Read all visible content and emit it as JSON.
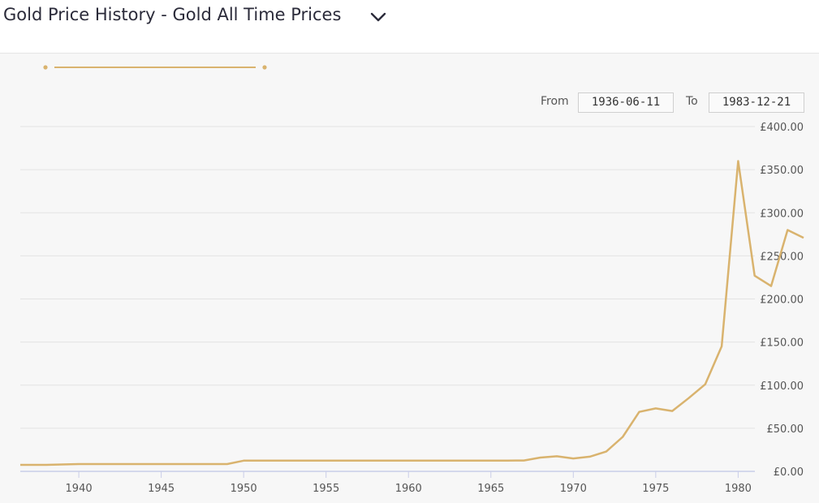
{
  "header": {
    "title": "Gold Price History - Gold All Time Prices"
  },
  "range_selector": {
    "from_label": "From",
    "from_value": "1936-06-11",
    "to_label": "To",
    "to_value": "1983-12-21"
  },
  "colors": {
    "line": "#d9b36e",
    "grid": "#e3e3e3",
    "axis": "#c9cde8",
    "title": "#2b2b3a"
  },
  "icons": {
    "dropdown": "chevron-down-icon"
  },
  "chart_data": {
    "type": "line",
    "title": "",
    "xlabel": "",
    "ylabel": "",
    "xlim": [
      1936.45,
      1983.97
    ],
    "ylim": [
      0,
      400
    ],
    "x_ticks": [
      1940,
      1945,
      1950,
      1955,
      1960,
      1965,
      1970,
      1975,
      1980
    ],
    "y_ticks": [
      {
        "value": 0,
        "label": "£0.00"
      },
      {
        "value": 50,
        "label": "£50.00"
      },
      {
        "value": 100,
        "label": "£100.00"
      },
      {
        "value": 150,
        "label": "£150.00"
      },
      {
        "value": 200,
        "label": "£200.00"
      },
      {
        "value": 250,
        "label": "£250.00"
      },
      {
        "value": 300,
        "label": "£300.00"
      },
      {
        "value": 350,
        "label": "£350.00"
      },
      {
        "value": 400,
        "label": "£400.00"
      }
    ],
    "grid": true,
    "y_axis_side": "right",
    "series": [
      {
        "x": [
          1936.45,
          1938,
          1939,
          1940,
          1941,
          1942,
          1943,
          1944,
          1945,
          1946,
          1947,
          1948,
          1949,
          1950,
          1951,
          1952,
          1953,
          1954,
          1955,
          1956,
          1957,
          1958,
          1959,
          1960,
          1961,
          1962,
          1963,
          1964,
          1965,
          1966,
          1967,
          1968,
          1969,
          1970,
          1971,
          1972,
          1973,
          1974,
          1975,
          1976,
          1977,
          1978,
          1979,
          1980,
          1981,
          1982,
          1983,
          1983.97
        ],
        "y": [
          7.5,
          7.5,
          8,
          8.5,
          8.5,
          8.5,
          8.5,
          8.5,
          8.5,
          8.5,
          8.5,
          8.5,
          8.5,
          12.4,
          12.4,
          12.4,
          12.5,
          12.5,
          12.5,
          12.5,
          12.5,
          12.5,
          12.5,
          12.5,
          12.5,
          12.5,
          12.5,
          12.5,
          12.5,
          12.5,
          12.6,
          16,
          17.5,
          15,
          17,
          23,
          40,
          69,
          73,
          70,
          85,
          101,
          145,
          360,
          227,
          215,
          280,
          271
        ]
      }
    ]
  }
}
